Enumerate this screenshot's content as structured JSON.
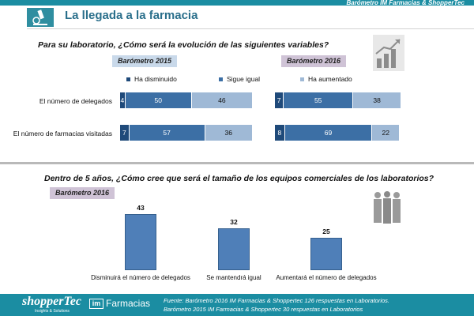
{
  "header": {
    "banner": "Barómetro IM Farmacias & ShopperTec",
    "title": "La llegada a la farmacia"
  },
  "section1": {
    "question": "Para su laboratorio, ¿Cómo será la evolución de las siguientes variables?",
    "legend": [
      "Ha disminuido",
      "Sigue igual",
      "Ha aumentado"
    ],
    "colors": [
      "#1f4a7a",
      "#3c6fa5",
      "#9fb9d6"
    ]
  },
  "section2": {
    "question": "Dentro de 5 años, ¿Cómo cree que será el tamaño de los equipos comerciales de los laboratorios?",
    "bar_color": "#4f7fb8"
  },
  "chart_data": [
    {
      "type": "bar",
      "stacked": true,
      "orientation": "horizontal",
      "title": "Barómetro 2015",
      "categories": [
        "El número de delegados",
        "El número de farmacias visitadas"
      ],
      "series": [
        {
          "name": "Ha disminuido",
          "values": [
            4,
            7
          ]
        },
        {
          "name": "Sigue igual",
          "values": [
            50,
            57
          ]
        },
        {
          "name": "Ha aumentado",
          "values": [
            46,
            36
          ]
        }
      ],
      "legend": "top"
    },
    {
      "type": "bar",
      "stacked": true,
      "orientation": "horizontal",
      "title": "Barómetro 2016",
      "categories": [
        "El número de delegados",
        "El número de farmacias visitadas"
      ],
      "series": [
        {
          "name": "Ha disminuido",
          "values": [
            7,
            8
          ]
        },
        {
          "name": "Sigue igual",
          "values": [
            55,
            69
          ]
        },
        {
          "name": "Ha aumentado",
          "values": [
            38,
            22
          ]
        }
      ],
      "legend": "top"
    },
    {
      "type": "bar",
      "title": "Barómetro 2016",
      "categories": [
        "Disminuirá el número de delegados",
        "Se mantendrá igual",
        "Aumentará el número de delegados"
      ],
      "values": [
        43,
        32,
        25
      ]
    }
  ],
  "footer": {
    "brand1": "shopperTec",
    "brand1_sub": "Insights & Solutions",
    "brand2_box": "im",
    "brand2": "Farmacias",
    "source_line1": "Fuente: Barómetro 2016  IM Farmacias & Shoppertec 126 respuestas en Laboratorios.",
    "source_line2": "Barómetro 2015  IM Farmacias & Shoppertec 30 respuestas en Laboratorios"
  },
  "icons": [
    "microscope-icon",
    "growth-chart-icon",
    "people-group-icon"
  ]
}
